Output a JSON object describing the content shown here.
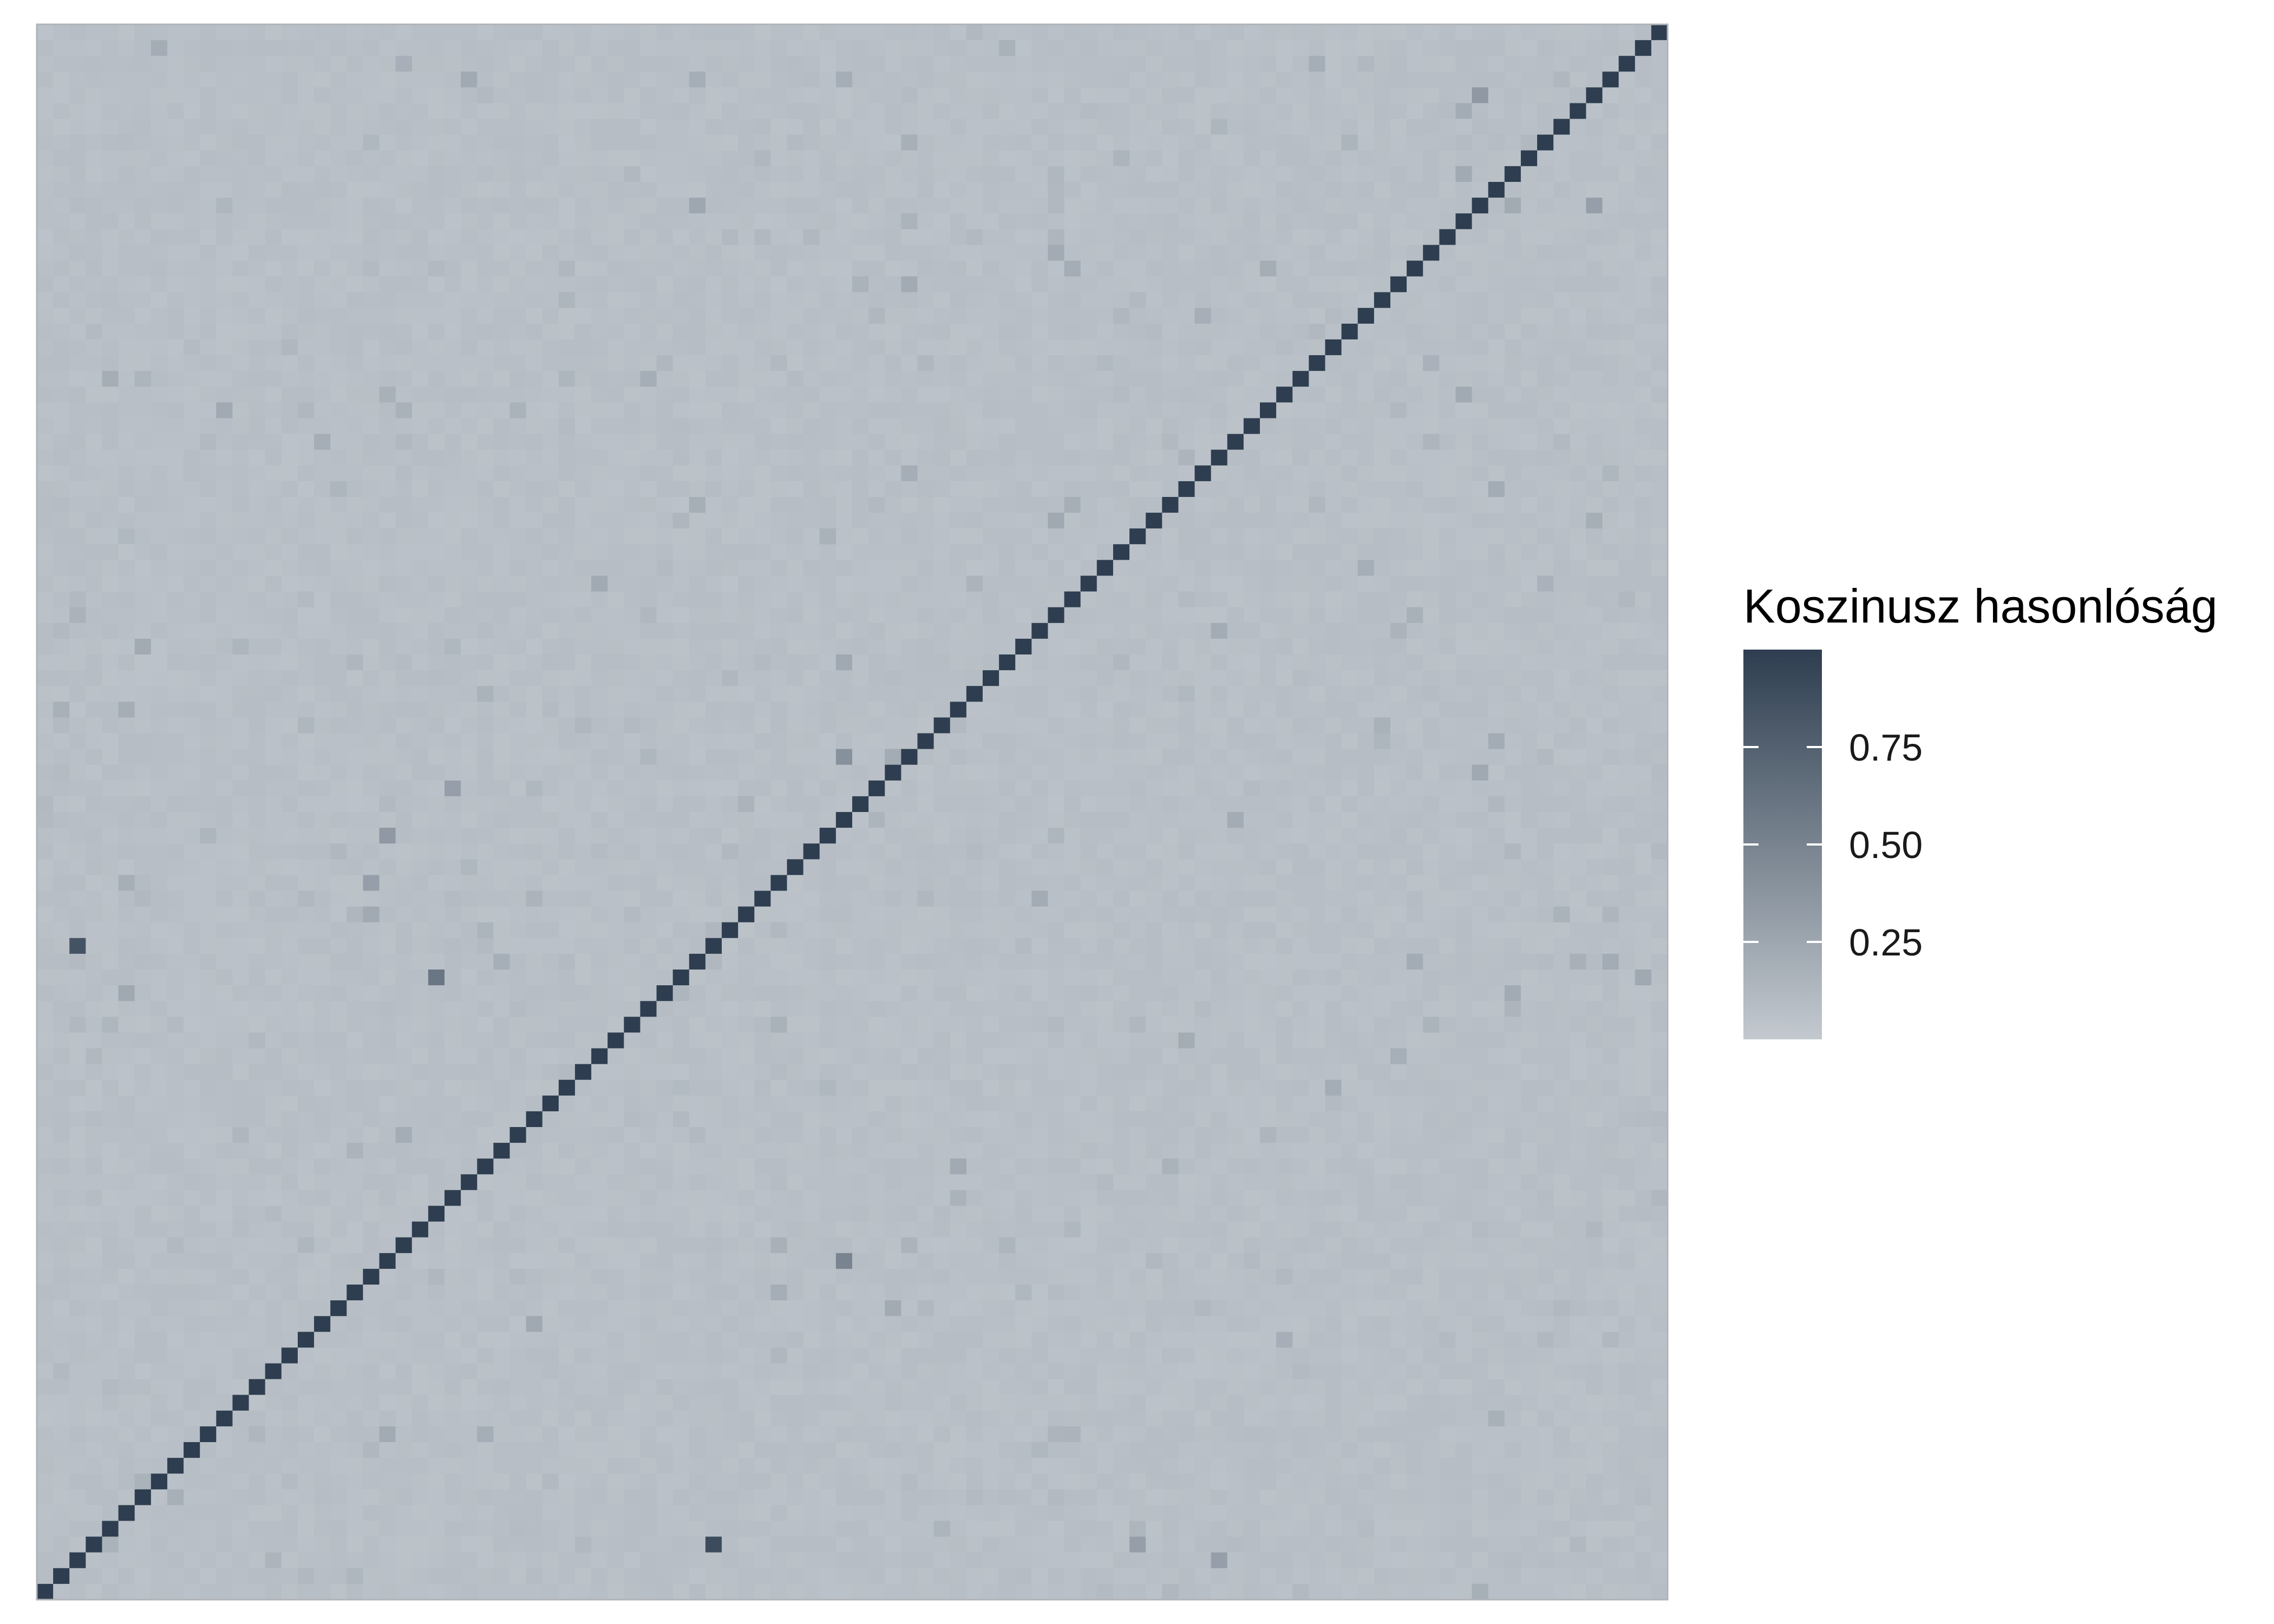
{
  "chart_data": {
    "type": "heatmap",
    "title": "",
    "xlabel": "",
    "ylabel": "",
    "n": 100,
    "value_range": [
      0,
      1
    ],
    "diagonal_value": 1.0,
    "background_value": 0.05,
    "colors": {
      "low": "#c3c9cf",
      "high": "#2e3e50",
      "panel_border": "#b0b4b8"
    },
    "legend": {
      "title": "Koszinusz hasonlóság",
      "breaks": [
        0.75,
        0.5,
        0.25
      ],
      "labels": [
        "0.75",
        "0.50",
        "0.25"
      ],
      "position": "right"
    },
    "notable_cells": [
      {
        "row": 3,
        "col": 40,
        "value": 0.2
      },
      {
        "row": 3,
        "col": 49,
        "value": 0.2
      },
      {
        "row": 4,
        "col": 88,
        "value": 0.35
      },
      {
        "row": 11,
        "col": 40,
        "value": 0.25
      },
      {
        "row": 11,
        "col": 95,
        "value": 0.3
      },
      {
        "row": 21,
        "col": 78,
        "value": 0.28
      },
      {
        "row": 46,
        "col": 49,
        "value": 0.4
      },
      {
        "row": 48,
        "col": 25,
        "value": 0.3
      },
      {
        "row": 58,
        "col": 2,
        "value": 0.85
      },
      {
        "row": 60,
        "col": 24,
        "value": 0.6
      },
      {
        "row": 96,
        "col": 41,
        "value": 0.9
      },
      {
        "row": 96,
        "col": 67,
        "value": 0.3
      },
      {
        "row": 97,
        "col": 72,
        "value": 0.3
      },
      {
        "row": 78,
        "col": 49,
        "value": 0.5
      },
      {
        "row": 51,
        "col": 21,
        "value": 0.35
      },
      {
        "row": 54,
        "col": 20,
        "value": 0.3
      },
      {
        "row": 22,
        "col": 37,
        "value": 0.2
      },
      {
        "row": 26,
        "col": 17,
        "value": 0.2
      }
    ]
  }
}
